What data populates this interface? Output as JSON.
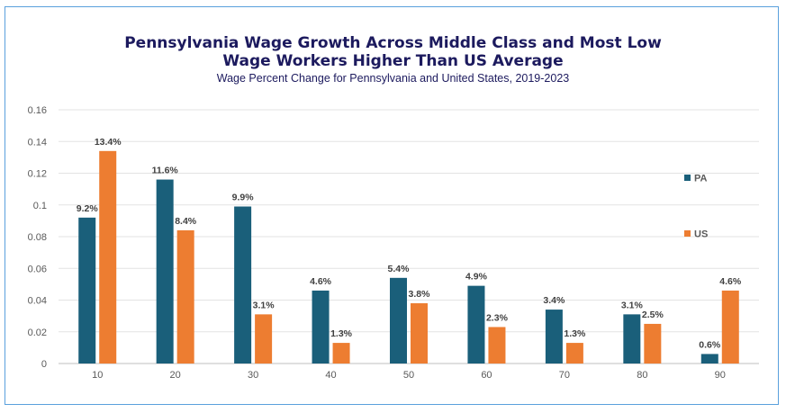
{
  "chart_data": {
    "type": "bar",
    "title_lines": [
      "Pennsylvania Wage Growth Across Middle Class and Most Low",
      "Wage Workers Higher Than US Average"
    ],
    "subtitle": "Wage Percent Change for Pennsylvania and United States, 2019-2023",
    "categories": [
      "10",
      "20",
      "30",
      "40",
      "50",
      "60",
      "70",
      "80",
      "90"
    ],
    "yticks": [
      "0",
      "0.02",
      "0.04",
      "0.06",
      "0.08",
      "0.1",
      "0.12",
      "0.14",
      "0.16"
    ],
    "ylim": [
      0,
      0.16
    ],
    "grid": true,
    "legend_position": "right",
    "series": [
      {
        "name": "PA",
        "color": "#1a5f7a",
        "values": [
          0.092,
          0.116,
          0.099,
          0.046,
          0.054,
          0.049,
          0.034,
          0.031,
          0.006
        ],
        "labels": [
          "9.2%",
          "11.6%",
          "9.9%",
          "4.6%",
          "5.4%",
          "4.9%",
          "3.4%",
          "3.1%",
          "0.6%"
        ]
      },
      {
        "name": "US",
        "color": "#ed7d31",
        "values": [
          0.134,
          0.084,
          0.031,
          0.013,
          0.038,
          0.023,
          0.013,
          0.025,
          0.046
        ],
        "labels": [
          "13.4%",
          "8.4%",
          "3.1%",
          "1.3%",
          "3.8%",
          "2.3%",
          "1.3%",
          "2.5%",
          "4.6%"
        ]
      }
    ]
  }
}
